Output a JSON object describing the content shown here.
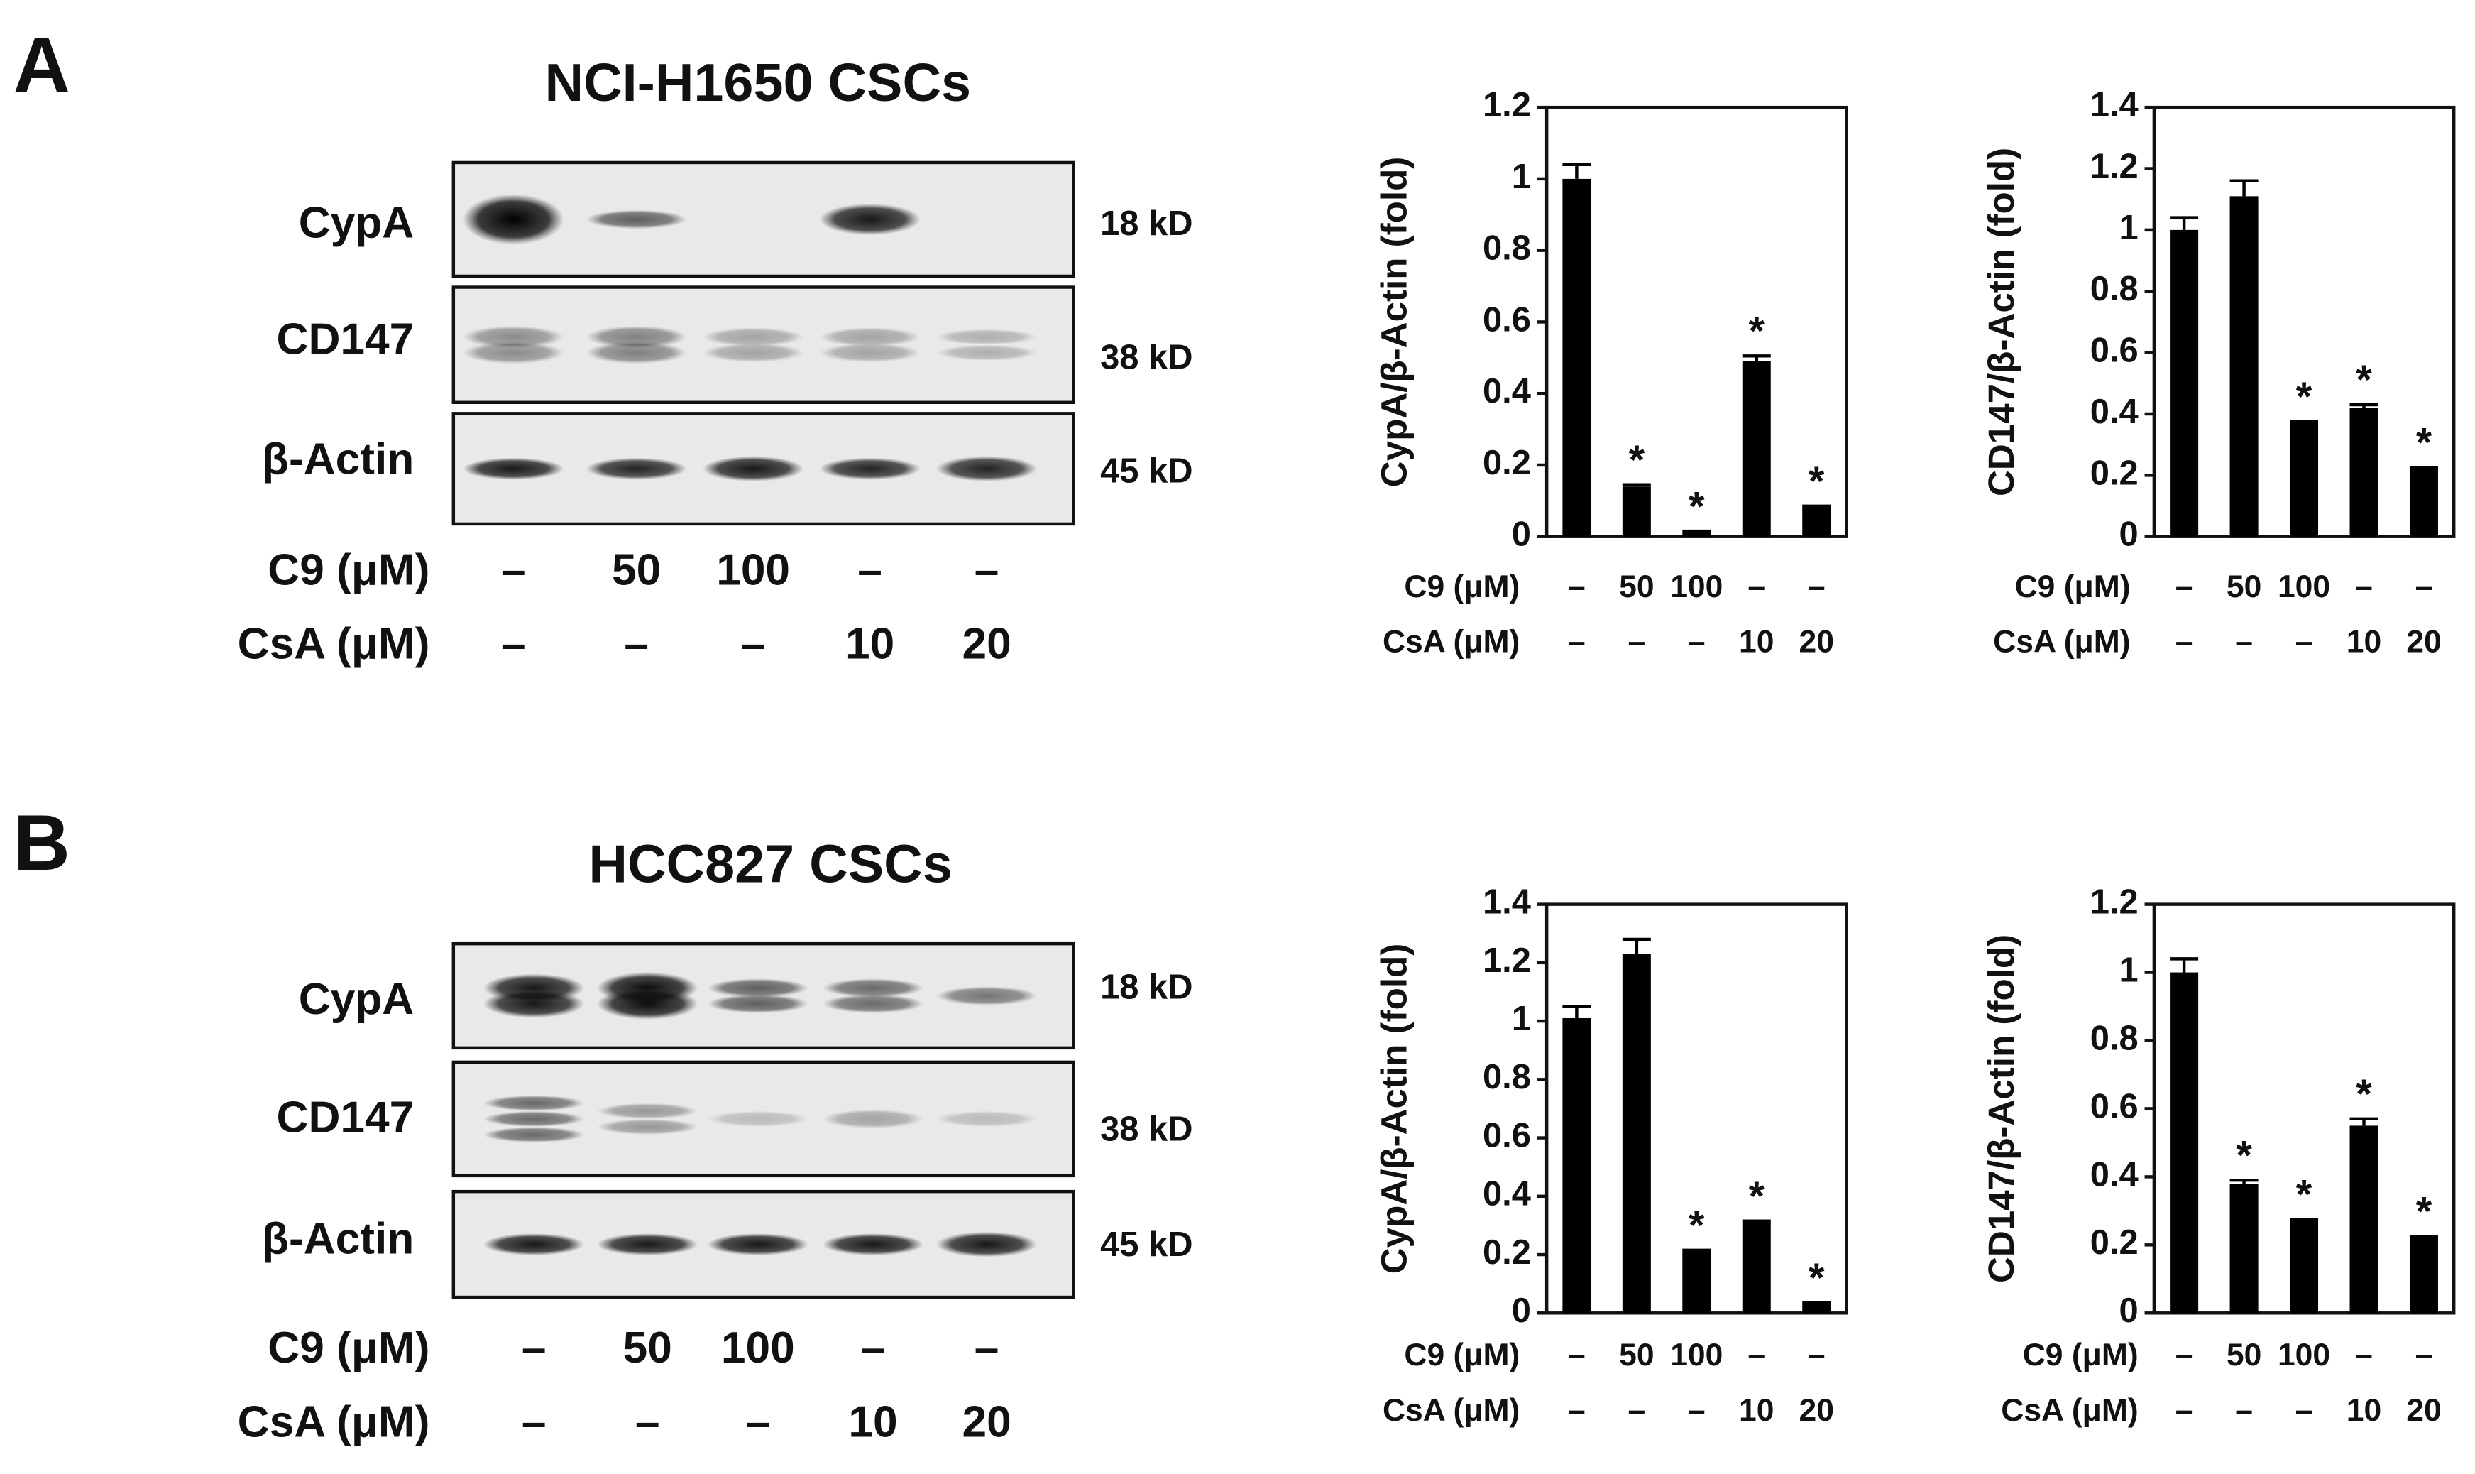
{
  "panel_labels": [
    "A",
    "B"
  ],
  "blots": [
    {
      "title": "NCI-H1650 CSCs",
      "rows": [
        {
          "label": "CypA",
          "size": "18 kD"
        },
        {
          "label": "CD147",
          "size": "38 kD"
        },
        {
          "label": "β-Actin",
          "size": "45 kD"
        }
      ],
      "conditions": [
        {
          "name": "C9 (μM)",
          "labels": [
            "–",
            "50",
            "100",
            "–",
            "–"
          ]
        },
        {
          "name": "CsA (μM)",
          "labels": [
            "–",
            "–",
            "–",
            "10",
            "20"
          ]
        }
      ]
    },
    {
      "title": "HCC827 CSCs",
      "rows": [
        {
          "label": "CypA",
          "size": "18 kD"
        },
        {
          "label": "CD147",
          "size": "38 kD"
        },
        {
          "label": "β-Actin",
          "size": "45 kD"
        }
      ],
      "conditions": [
        {
          "name": "C9 (μM)",
          "labels": [
            "–",
            "50",
            "100",
            "–",
            "–"
          ]
        },
        {
          "name": "CsA (μM)",
          "labels": [
            "–",
            "–",
            "–",
            "10",
            "20"
          ]
        }
      ]
    }
  ],
  "chart_data": [
    {
      "type": "bar",
      "ylabel": "CypA/β-Actin (fold)",
      "color": "#000000",
      "values": [
        1.0,
        0.14,
        0.01,
        0.49,
        0.08
      ],
      "errors": [
        0.04,
        0.005,
        0.005,
        0.015,
        0.005
      ],
      "value_labels": [
        null,
        "*",
        "*",
        "*",
        "*"
      ],
      "ylim": [
        0,
        1.2
      ],
      "yticks": [
        0,
        0.2,
        0.4,
        0.6,
        0.8,
        1,
        1.2
      ],
      "conditions": [
        {
          "name": "C9 (μM)",
          "labels": [
            "–",
            "50",
            "100",
            "–",
            "–"
          ]
        },
        {
          "name": "CsA (μM)",
          "labels": [
            "–",
            "–",
            "–",
            "10",
            "20"
          ]
        }
      ]
    },
    {
      "type": "bar",
      "ylabel": "CD147/β-Actin (fold)",
      "color": "#000000",
      "values": [
        1.0,
        1.11,
        0.37,
        0.42,
        0.22
      ],
      "errors": [
        0.04,
        0.05,
        0.005,
        0.01,
        0.005
      ],
      "value_labels": [
        null,
        null,
        "*",
        "*",
        "*"
      ],
      "ylim": [
        0,
        1.4
      ],
      "yticks": [
        0,
        0.2,
        0.4,
        0.6,
        0.8,
        1,
        1.2,
        1.4
      ],
      "conditions": [
        {
          "name": "C9 (μM)",
          "labels": [
            "–",
            "50",
            "100",
            "–",
            "–"
          ]
        },
        {
          "name": "CsA (μM)",
          "labels": [
            "–",
            "–",
            "–",
            "10",
            "20"
          ]
        }
      ]
    },
    {
      "type": "bar",
      "ylabel": "CypA/β-Actin (fold)",
      "color": "#000000",
      "values": [
        1.01,
        1.23,
        0.21,
        0.31,
        0.03
      ],
      "errors": [
        0.04,
        0.05,
        0.005,
        0.005,
        0.005
      ],
      "value_labels": [
        null,
        null,
        "*",
        "*",
        "*"
      ],
      "ylim": [
        0,
        1.4
      ],
      "yticks": [
        0,
        0.2,
        0.4,
        0.6,
        0.8,
        1,
        1.2,
        1.4
      ],
      "conditions": [
        {
          "name": "C9 (μM)",
          "labels": [
            "–",
            "50",
            "100",
            "–",
            "–"
          ]
        },
        {
          "name": "CsA (μM)",
          "labels": [
            "–",
            "–",
            "–",
            "10",
            "20"
          ]
        }
      ]
    },
    {
      "type": "bar",
      "ylabel": "CD147/β-Actin (fold)",
      "color": "#000000",
      "values": [
        1.0,
        0.38,
        0.27,
        0.55,
        0.22
      ],
      "errors": [
        0.04,
        0.01,
        0.005,
        0.02,
        0.005
      ],
      "value_labels": [
        null,
        "*",
        "*",
        "*",
        "*"
      ],
      "ylim": [
        0,
        1.2
      ],
      "yticks": [
        0,
        0.2,
        0.4,
        0.6,
        0.8,
        1,
        1.2
      ],
      "conditions": [
        {
          "name": "C9 (μM)",
          "labels": [
            "–",
            "50",
            "100",
            "–",
            "–"
          ]
        },
        {
          "name": "CsA (μM)",
          "labels": [
            "–",
            "–",
            "–",
            "10",
            "20"
          ]
        }
      ]
    }
  ]
}
